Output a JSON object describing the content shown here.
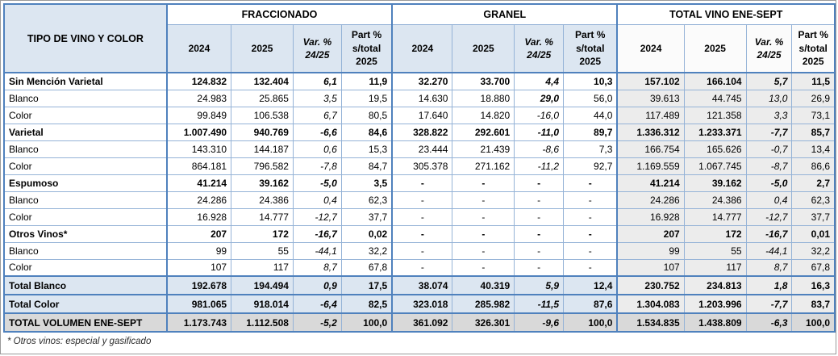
{
  "table": {
    "corner_header": "TIPO DE VINO Y COLOR",
    "groups": [
      {
        "label": "FRACCIONADO"
      },
      {
        "label": "GRANEL"
      },
      {
        "label": "TOTAL VINO ENE-SEPT"
      }
    ],
    "sub_headers": {
      "year_2024": "2024",
      "year_2025": "2025",
      "var_line1": "Var. %",
      "var_line2": "24/25",
      "part_line1": "Part %",
      "part_line2": "s/total",
      "part_line3": "2025"
    },
    "rows": [
      {
        "label": "Sin Mención Varietal",
        "style": "cat",
        "cells": [
          "124.832",
          "132.404",
          "6,1",
          "11,9",
          "32.270",
          "33.700",
          "4,4",
          "10,3",
          "157.102",
          "166.104",
          "5,7",
          "11,5"
        ]
      },
      {
        "label": "Blanco",
        "style": "sub",
        "bold_cells": [
          6
        ],
        "cells": [
          "24.983",
          "25.865",
          "3,5",
          "19,5",
          "14.630",
          "18.880",
          "29,0",
          "56,0",
          "39.613",
          "44.745",
          "13,0",
          "26,9"
        ]
      },
      {
        "label": "Color",
        "style": "sub",
        "cells": [
          "99.849",
          "106.538",
          "6,7",
          "80,5",
          "17.640",
          "14.820",
          "-16,0",
          "44,0",
          "117.489",
          "121.358",
          "3,3",
          "73,1"
        ]
      },
      {
        "label": "Varietal",
        "style": "cat",
        "cells": [
          "1.007.490",
          "940.769",
          "-6,6",
          "84,6",
          "328.822",
          "292.601",
          "-11,0",
          "89,7",
          "1.336.312",
          "1.233.371",
          "-7,7",
          "85,7"
        ]
      },
      {
        "label": "Blanco",
        "style": "sub",
        "cells": [
          "143.310",
          "144.187",
          "0,6",
          "15,3",
          "23.444",
          "21.439",
          "-8,6",
          "7,3",
          "166.754",
          "165.626",
          "-0,7",
          "13,4"
        ]
      },
      {
        "label": "Color",
        "style": "sub",
        "cells": [
          "864.181",
          "796.582",
          "-7,8",
          "84,7",
          "305.378",
          "271.162",
          "-11,2",
          "92,7",
          "1.169.559",
          "1.067.745",
          "-8,7",
          "86,6"
        ]
      },
      {
        "label": "Espumoso",
        "style": "cat",
        "cells": [
          "41.214",
          "39.162",
          "-5,0",
          "3,5",
          "-",
          "-",
          "-",
          "-",
          "41.214",
          "39.162",
          "-5,0",
          "2,7"
        ]
      },
      {
        "label": "Blanco",
        "style": "sub",
        "cells": [
          "24.286",
          "24.386",
          "0,4",
          "62,3",
          "-",
          "-",
          "-",
          "-",
          "24.286",
          "24.386",
          "0,4",
          "62,3"
        ]
      },
      {
        "label": "Color",
        "style": "sub",
        "cells": [
          "16.928",
          "14.777",
          "-12,7",
          "37,7",
          "-",
          "-",
          "-",
          "-",
          "16.928",
          "14.777",
          "-12,7",
          "37,7"
        ]
      },
      {
        "label": "Otros Vinos*",
        "style": "cat",
        "cells": [
          "207",
          "172",
          "-16,7",
          "0,02",
          "-",
          "-",
          "-",
          "-",
          "207",
          "172",
          "-16,7",
          "0,01"
        ]
      },
      {
        "label": "Blanco",
        "style": "sub",
        "cells": [
          "99",
          "55",
          "-44,1",
          "32,2",
          "-",
          "-",
          "-",
          "-",
          "99",
          "55",
          "-44,1",
          "32,2"
        ]
      },
      {
        "label": "Color",
        "style": "sub",
        "cells": [
          "107",
          "117",
          "8,7",
          "67,8",
          "-",
          "-",
          "-",
          "-",
          "107",
          "117",
          "8,7",
          "67,8"
        ]
      },
      {
        "label": "Total Blanco",
        "style": "total-blue",
        "cells": [
          "192.678",
          "194.494",
          "0,9",
          "17,5",
          "38.074",
          "40.319",
          "5,9",
          "12,4",
          "230.752",
          "234.813",
          "1,8",
          "16,3"
        ]
      },
      {
        "label": "Total Color",
        "style": "total-blue",
        "cells": [
          "981.065",
          "918.014",
          "-6,4",
          "82,5",
          "323.018",
          "285.982",
          "-11,5",
          "87,6",
          "1.304.083",
          "1.203.996",
          "-7,7",
          "83,7"
        ]
      },
      {
        "label": "TOTAL VOLUMEN ENE-SEPT",
        "style": "total-gray",
        "cells": [
          "1.173.743",
          "1.112.508",
          "-5,2",
          "100,0",
          "361.092",
          "326.301",
          "-9,6",
          "100,0",
          "1.534.835",
          "1.438.809",
          "-6,3",
          "100,0"
        ]
      }
    ],
    "footnote": "* Otros vinos: especial y gasificado"
  },
  "colors": {
    "header_fill": "#dce6f1",
    "total_section_fill": "#ececec",
    "grand_total_fill": "#d9d9d9",
    "border_light": "#95b3d7",
    "border_heavy": "#4f81bd"
  }
}
